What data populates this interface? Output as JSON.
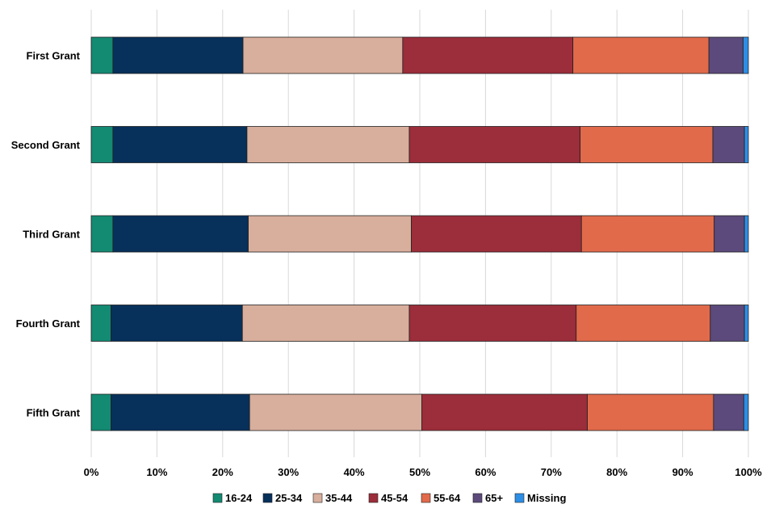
{
  "chart_data": {
    "type": "bar",
    "orientation": "horizontal",
    "stacked": true,
    "percent": true,
    "categories": [
      "First Grant",
      "Second Grant",
      "Third Grant",
      "Fourth Grant",
      "Fifth Grant"
    ],
    "series": [
      {
        "name": "16-24",
        "color": "#138a72",
        "values": [
          3.3,
          3.3,
          3.3,
          3.0,
          3.0
        ]
      },
      {
        "name": "25-34",
        "color": "#07305b",
        "values": [
          19.8,
          20.4,
          20.6,
          20.0,
          21.1
        ]
      },
      {
        "name": "35-44",
        "color": "#d8ae9c",
        "values": [
          24.3,
          24.7,
          24.8,
          25.4,
          26.2
        ]
      },
      {
        "name": "45-54",
        "color": "#9c2d3a",
        "values": [
          25.9,
          26.0,
          25.9,
          25.4,
          25.2
        ]
      },
      {
        "name": "55-64",
        "color": "#e16a4b",
        "values": [
          20.7,
          20.2,
          20.2,
          20.4,
          19.2
        ]
      },
      {
        "name": "65+",
        "color": "#5c4a7c",
        "values": [
          5.2,
          4.8,
          4.6,
          5.2,
          4.6
        ]
      },
      {
        "name": "Missing",
        "color": "#2d8ee6",
        "values": [
          0.8,
          0.6,
          0.6,
          0.6,
          0.7
        ]
      }
    ],
    "xlim": [
      0,
      100
    ],
    "x_ticks": [
      "0%",
      "10%",
      "20%",
      "30%",
      "40%",
      "50%",
      "60%",
      "70%",
      "80%",
      "90%",
      "100%"
    ],
    "title": "",
    "xlabel": "",
    "ylabel": "",
    "grid": "vertical",
    "legend": "bottom"
  }
}
